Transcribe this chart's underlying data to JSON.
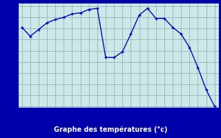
{
  "hours": [
    0,
    1,
    2,
    3,
    4,
    5,
    6,
    7,
    8,
    9,
    10,
    11,
    12,
    13,
    14,
    15,
    16,
    17,
    18,
    19,
    20,
    21,
    22,
    23
  ],
  "temperatures": [
    17.1,
    16.3,
    16.9,
    17.5,
    17.8,
    18.0,
    18.3,
    18.4,
    18.7,
    18.8,
    14.4,
    14.4,
    14.9,
    16.5,
    18.2,
    18.8,
    17.9,
    17.9,
    17.1,
    16.5,
    15.3,
    13.5,
    11.5,
    10.0
  ],
  "line_color": "#0000bb",
  "marker": "+",
  "bg_color": "#cce8e8",
  "plot_bg_color": "#cce8e8",
  "grid_color": "#99bbbb",
  "xlabel": "Graphe des températures (°c)",
  "xlabel_color": "#ffffff",
  "xlabel_bg": "#0000aa",
  "axis_color": "#0000bb",
  "tick_color": "#0000bb",
  "ylim": [
    10,
    19
  ],
  "xlim": [
    -0.5,
    23.5
  ],
  "yticks": [
    10,
    11,
    12,
    13,
    14,
    15,
    16,
    17,
    18,
    19
  ],
  "xticks": [
    0,
    1,
    2,
    3,
    4,
    5,
    6,
    7,
    8,
    9,
    10,
    11,
    12,
    13,
    14,
    15,
    16,
    17,
    18,
    19,
    20,
    21,
    22,
    23
  ]
}
